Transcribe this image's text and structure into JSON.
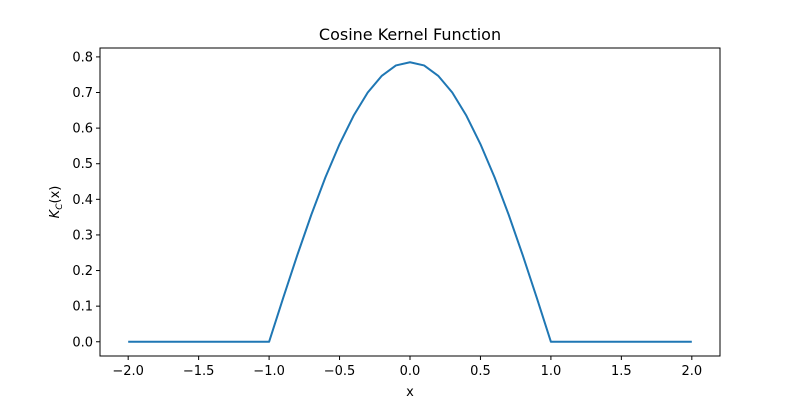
{
  "chart_data": {
    "type": "line",
    "title": "Cosine Kernel Function",
    "xlabel": "x",
    "ylabel": {
      "base": "K",
      "subscript": "C",
      "arg": "(x)"
    },
    "xlim": [
      -2.2,
      2.2
    ],
    "ylim": [
      -0.04,
      0.825
    ],
    "xticks": [
      -2.0,
      -1.5,
      -1.0,
      -0.5,
      0.0,
      0.5,
      1.0,
      1.5,
      2.0
    ],
    "xtick_labels": [
      "−2.0",
      "−1.5",
      "−1.0",
      "−0.5",
      "0.0",
      "0.5",
      "1.0",
      "1.5",
      "2.0"
    ],
    "yticks": [
      0.0,
      0.1,
      0.2,
      0.3,
      0.4,
      0.5,
      0.6,
      0.7,
      0.8
    ],
    "ytick_labels": [
      "0.0",
      "0.1",
      "0.2",
      "0.3",
      "0.4",
      "0.5",
      "0.6",
      "0.7",
      "0.8"
    ],
    "grid": false,
    "legend": null,
    "series": [
      {
        "color": "#1f77b4",
        "x": [
          -2.0,
          -1.0,
          -0.9,
          -0.8,
          -0.7,
          -0.6,
          -0.5,
          -0.4,
          -0.3,
          -0.2,
          -0.1,
          0.0,
          0.1,
          0.2,
          0.3,
          0.4,
          0.5,
          0.6,
          0.7,
          0.8,
          0.9,
          1.0,
          2.0
        ],
        "y": [
          0.0,
          0.0,
          0.123,
          0.243,
          0.357,
          0.462,
          0.555,
          0.635,
          0.7,
          0.747,
          0.776,
          0.785,
          0.776,
          0.747,
          0.7,
          0.635,
          0.555,
          0.462,
          0.357,
          0.243,
          0.123,
          0.0,
          0.0
        ]
      }
    ]
  }
}
